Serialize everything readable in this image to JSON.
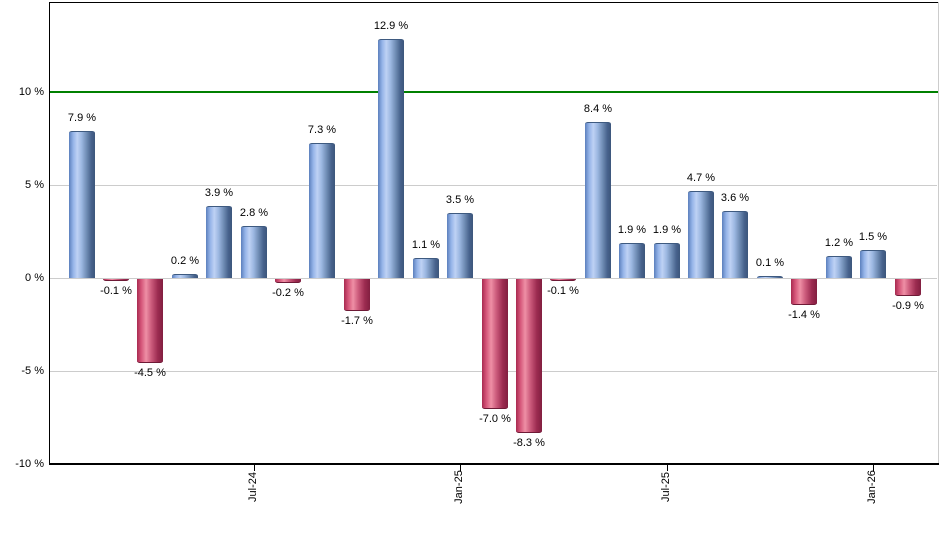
{
  "chart_data": {
    "type": "bar",
    "title": "",
    "unit": "%",
    "bar_count": 25,
    "values": [
      7.9,
      -0.1,
      -4.5,
      0.2,
      3.9,
      2.8,
      -0.2,
      7.3,
      -1.7,
      12.9,
      1.1,
      3.5,
      -7.0,
      -8.3,
      -0.1,
      8.4,
      1.9,
      1.9,
      4.7,
      3.6,
      0.1,
      -1.4,
      1.2,
      1.5,
      -0.9
    ],
    "bar_labels": [
      "7.9 %",
      "-0.1 %",
      "-4.5 %",
      "0.2 %",
      "3.9 %",
      "2.8 %",
      "-0.2 %",
      "7.3 %",
      "-1.7 %",
      "12.9 %",
      "1.1 %",
      "3.5 %",
      "-7.0 %",
      "-8.3 %",
      "-0.1 %",
      "8.4 %",
      "1.9 %",
      "1.9 %",
      "4.7 %",
      "3.6 %",
      "0.1 %",
      "-1.4 %",
      "1.2 %",
      "1.5 %",
      "-0.9 %"
    ],
    "yticks": [
      {
        "value": 10,
        "label": "10 %"
      },
      {
        "value": 5,
        "label": "5 %"
      },
      {
        "value": 0,
        "label": "0 %"
      },
      {
        "value": -5,
        "label": "-5 %"
      },
      {
        "value": -10,
        "label": "-10 %"
      }
    ],
    "xticks": [
      {
        "bar_index": 5,
        "label": "Jul-24"
      },
      {
        "bar_index": 11,
        "label": "Jan-25"
      },
      {
        "bar_index": 17,
        "label": "Jul-25"
      },
      {
        "bar_index": 23,
        "label": "Jan-26"
      }
    ],
    "ylim": [
      -10,
      14.85
    ],
    "grid": true,
    "legend": false,
    "reference_line": {
      "value": 10,
      "color": "#008000"
    },
    "colors": {
      "positive_bar": "#8fafe6",
      "negative_bar": "#d05578",
      "gridline": "#cccccc",
      "axis": "#000000",
      "background": "#ffffff",
      "label_text": "#000000"
    }
  }
}
